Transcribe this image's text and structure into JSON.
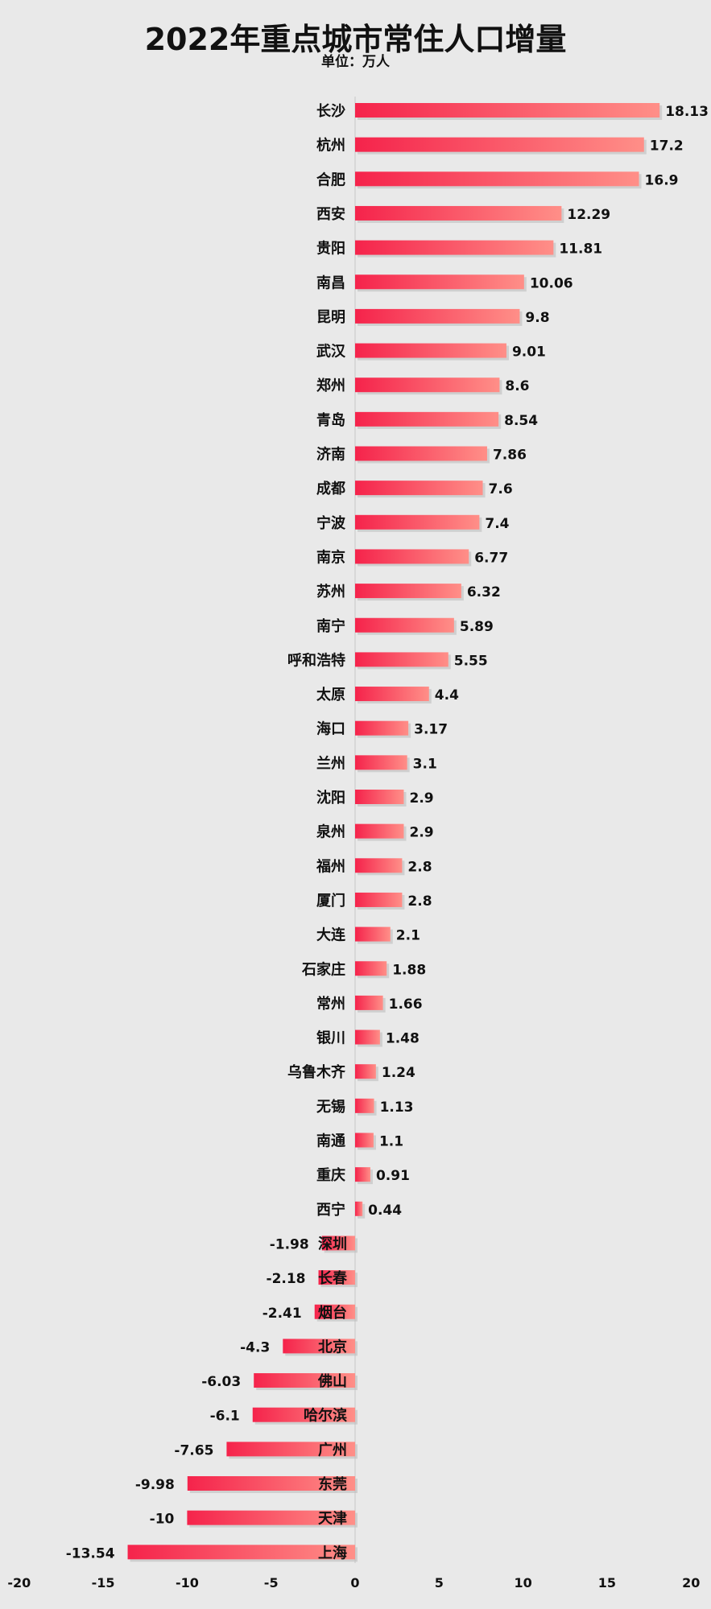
{
  "page": {
    "title": "2022年重点城市常住人口增量",
    "subtitle": "单位：万人"
  },
  "chart_data": {
    "type": "bar",
    "orientation": "horizontal",
    "title": "2022年重点城市常住人口增量",
    "subtitle": "单位：万人",
    "xlabel": "",
    "ylabel": "",
    "xlim": [
      -20,
      20
    ],
    "xticks": [
      -20,
      -15,
      -10,
      -5,
      0,
      5,
      10,
      15,
      20
    ],
    "xtick_labels": [
      "-20",
      "-15",
      "-10",
      "-5",
      "0",
      "5",
      "10",
      "15",
      "20"
    ],
    "grid": false,
    "legend": "none",
    "colors": {
      "bar_start": "#f5234b",
      "bar_end": "#ff8f88",
      "background": "#e9e9e9"
    },
    "categories": [
      "长沙",
      "杭州",
      "合肥",
      "西安",
      "贵阳",
      "南昌",
      "昆明",
      "武汉",
      "郑州",
      "青岛",
      "济南",
      "成都",
      "宁波",
      "南京",
      "苏州",
      "南宁",
      "呼和浩特",
      "太原",
      "海口",
      "兰州",
      "沈阳",
      "泉州",
      "福州",
      "厦门",
      "大连",
      "石家庄",
      "常州",
      "银川",
      "乌鲁木齐",
      "无锡",
      "南通",
      "重庆",
      "西宁",
      "深圳",
      "长春",
      "烟台",
      "北京",
      "佛山",
      "哈尔滨",
      "广州",
      "东莞",
      "天津",
      "上海"
    ],
    "values": [
      18.13,
      17.2,
      16.9,
      12.29,
      11.81,
      10.06,
      9.8,
      9.01,
      8.6,
      8.54,
      7.86,
      7.6,
      7.4,
      6.77,
      6.32,
      5.89,
      5.55,
      4.4,
      3.17,
      3.1,
      2.9,
      2.9,
      2.8,
      2.8,
      2.1,
      1.88,
      1.66,
      1.48,
      1.24,
      1.13,
      1.1,
      0.91,
      0.44,
      -1.98,
      -2.18,
      -2.41,
      -4.3,
      -6.03,
      -6.1,
      -7.65,
      -9.98,
      -10,
      -13.54
    ],
    "value_labels": [
      "18.13",
      "17.2",
      "16.9",
      "12.29",
      "11.81",
      "10.06",
      "9.8",
      "9.01",
      "8.6",
      "8.54",
      "7.86",
      "7.6",
      "7.4",
      "6.77",
      "6.32",
      "5.89",
      "5.55",
      "4.4",
      "3.17",
      "3.1",
      "2.9",
      "2.9",
      "2.8",
      "2.8",
      "2.1",
      "1.88",
      "1.66",
      "1.48",
      "1.24",
      "1.13",
      "1.1",
      "0.91",
      "0.44",
      "-1.98",
      "-2.18",
      "-2.41",
      "-4.3",
      "-6.03",
      "-6.1",
      "-7.65",
      "-9.98",
      "-10",
      "-13.54"
    ]
  }
}
